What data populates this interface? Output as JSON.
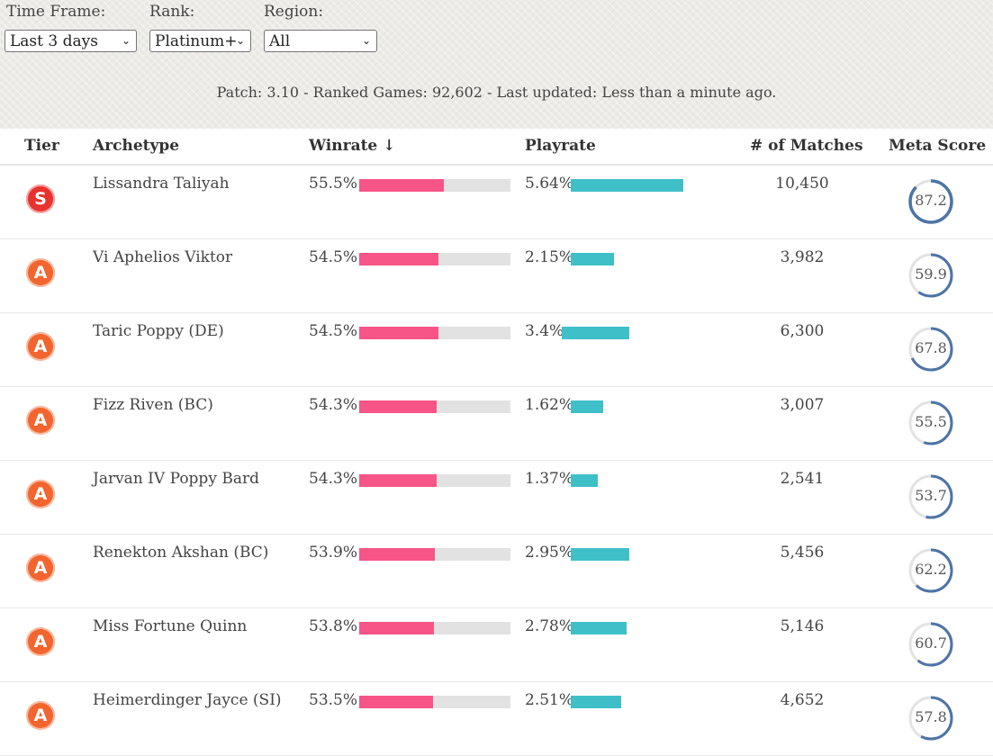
{
  "filters": {
    "time_frame": {
      "label": "Time Frame:",
      "value": "Last 3 days"
    },
    "rank": {
      "label": "Rank:",
      "value": "Platinum+"
    },
    "region": {
      "label": "Region:",
      "value": "All"
    },
    "chevron_glyph": "⌄"
  },
  "summary": "Patch: 3.10 - Ranked Games: 92,602 - Last updated: Less than a minute ago.",
  "headers": {
    "tier": "Tier",
    "archetype": "Archetype",
    "winrate": "Winrate ↓",
    "playrate": "Playrate",
    "matches": "# of Matches",
    "meta_score": "Meta Score"
  },
  "colors": {
    "tier_s": "#e8322f",
    "tier_a": "#f2652e",
    "winrate_bar": "#f75587",
    "playrate_bar": "#3fc0c8",
    "meta_ring": "#4e74a6"
  },
  "rows": [
    {
      "tier": "S",
      "archetype": "Lissandra Taliyah",
      "winrate": "55.5%",
      "playrate": "5.64%",
      "matches": "10,450",
      "meta_score": "87.2"
    },
    {
      "tier": "A",
      "archetype": "Vi Aphelios Viktor",
      "winrate": "54.5%",
      "playrate": "2.15%",
      "matches": "3,982",
      "meta_score": "59.9"
    },
    {
      "tier": "A",
      "archetype": "Taric Poppy (DE)",
      "winrate": "54.5%",
      "playrate": "3.4%",
      "matches": "6,300",
      "meta_score": "67.8"
    },
    {
      "tier": "A",
      "archetype": "Fizz Riven (BC)",
      "winrate": "54.3%",
      "playrate": "1.62%",
      "matches": "3,007",
      "meta_score": "55.5"
    },
    {
      "tier": "A",
      "archetype": "Jarvan IV Poppy Bard",
      "winrate": "54.3%",
      "playrate": "1.37%",
      "matches": "2,541",
      "meta_score": "53.7"
    },
    {
      "tier": "A",
      "archetype": "Renekton Akshan (BC)",
      "winrate": "53.9%",
      "playrate": "2.95%",
      "matches": "5,456",
      "meta_score": "62.2"
    },
    {
      "tier": "A",
      "archetype": "Miss Fortune Quinn",
      "winrate": "53.8%",
      "playrate": "2.78%",
      "matches": "5,146",
      "meta_score": "60.7"
    },
    {
      "tier": "A",
      "archetype": "Heimerdinger Jayce (SI)",
      "winrate": "53.5%",
      "playrate": "2.51%",
      "matches": "4,652",
      "meta_score": "57.8"
    }
  ]
}
